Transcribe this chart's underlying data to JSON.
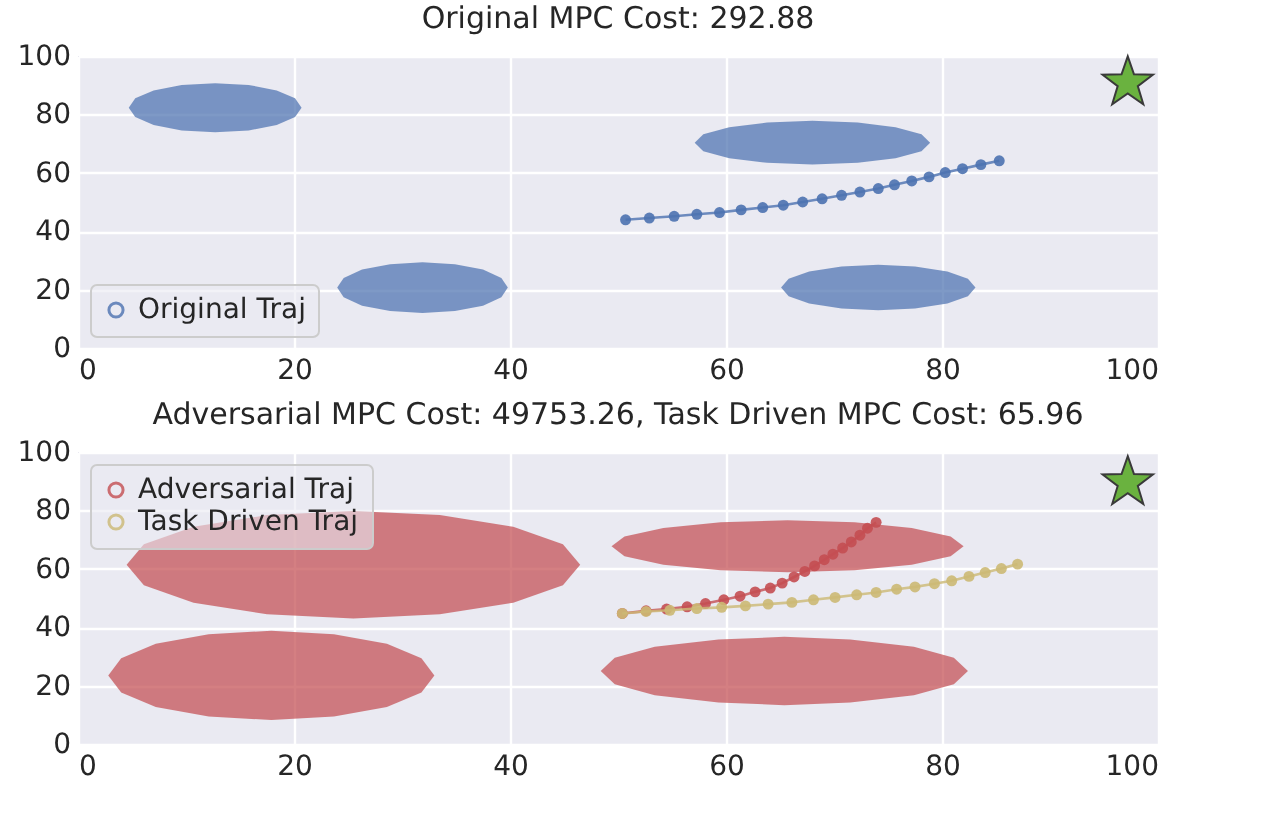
{
  "chart_data": [
    {
      "type": "line",
      "title": "Original MPC Cost: 292.88",
      "xlim": [
        0,
        100
      ],
      "ylim": [
        0,
        100
      ],
      "xticks": [
        0,
        20,
        40,
        60,
        80,
        100
      ],
      "yticks": [
        0,
        20,
        40,
        60,
        80,
        100
      ],
      "grid": true,
      "legend": "bottom left",
      "series": [
        {
          "type": "area",
          "color": "#4c72b0",
          "x": [
            4.7,
            5.3,
            7.0,
            9.6,
            12.7,
            15.8,
            18.4,
            20.1,
            20.7,
            20.1,
            18.4,
            15.8,
            12.7,
            9.6,
            7.0,
            5.3
          ],
          "values": [
            82.3,
            85.5,
            88.2,
            90.1,
            90.7,
            90.1,
            88.2,
            85.5,
            82.3,
            79.1,
            76.4,
            74.5,
            73.9,
            74.5,
            76.4,
            79.1
          ]
        },
        {
          "type": "area",
          "color": "#4c72b0",
          "x": [
            57.1,
            57.9,
            60.3,
            63.8,
            68.0,
            72.2,
            75.7,
            78.1,
            78.9,
            78.1,
            75.7,
            72.2,
            68.0,
            63.8,
            60.3,
            57.9
          ],
          "values": [
            70.3,
            73.2,
            75.6,
            77.2,
            77.8,
            77.2,
            75.6,
            73.2,
            70.3,
            67.4,
            65.0,
            63.4,
            62.8,
            63.4,
            65.0,
            67.4
          ]
        },
        {
          "type": "area",
          "color": "#4c72b0",
          "x": [
            24.0,
            24.6,
            26.3,
            28.9,
            31.9,
            34.9,
            37.5,
            39.2,
            39.8,
            39.2,
            37.5,
            34.9,
            31.9,
            28.9,
            26.3,
            24.6
          ],
          "values": [
            20.7,
            24.0,
            26.9,
            28.7,
            29.4,
            28.7,
            26.9,
            24.0,
            20.7,
            17.4,
            14.5,
            12.7,
            12.0,
            12.7,
            14.5,
            17.4
          ]
        },
        {
          "type": "area",
          "color": "#4c72b0",
          "x": [
            65.1,
            65.8,
            67.7,
            70.7,
            74.1,
            77.5,
            80.5,
            82.4,
            83.1,
            82.4,
            80.5,
            77.5,
            74.1,
            70.7,
            67.7,
            65.8
          ],
          "values": [
            20.7,
            23.7,
            26.2,
            27.9,
            28.5,
            27.9,
            26.2,
            23.7,
            20.7,
            17.7,
            15.2,
            13.5,
            12.9,
            13.5,
            15.2,
            17.7
          ]
        },
        {
          "type": "line",
          "name": "Original Traj",
          "color": "#4c72b0",
          "marker": "circle",
          "line_style": "solid",
          "x": [
            50.7,
            52.9,
            55.2,
            57.3,
            59.4,
            61.4,
            63.4,
            65.3,
            67.1,
            68.9,
            70.7,
            72.4,
            74.1,
            75.6,
            77.2,
            78.8,
            80.3,
            81.9,
            83.6,
            85.3
          ],
          "values": [
            43.9,
            44.5,
            45.1,
            45.8,
            46.4,
            47.3,
            48.1,
            48.9,
            50.0,
            51.1,
            52.3,
            53.4,
            54.6,
            55.9,
            57.2,
            58.6,
            60.1,
            61.4,
            62.8,
            64.1
          ]
        },
        {
          "type": "scatter",
          "color": "#6ab23f",
          "marker": "star",
          "x": [
            97.2
          ],
          "values": [
            90.8
          ]
        }
      ]
    },
    {
      "type": "line",
      "title": "Adversarial MPC Cost: 49753.26, Task Driven MPC Cost: 65.96",
      "xlim": [
        0,
        100
      ],
      "ylim": [
        0,
        100
      ],
      "xticks": [
        0,
        20,
        40,
        60,
        80,
        100
      ],
      "yticks": [
        0,
        20,
        40,
        60,
        80,
        100
      ],
      "grid": true,
      "legend": "top left",
      "series": [
        {
          "type": "area",
          "color": "#c44e52",
          "x": [
            4.5,
            6.1,
            10.7,
            17.5,
            25.5,
            33.5,
            40.3,
            44.9,
            46.5,
            44.9,
            40.3,
            33.5,
            25.5,
            17.5,
            10.7,
            6.1
          ],
          "values": [
            61.4,
            68.4,
            74.4,
            78.4,
            79.8,
            78.4,
            74.4,
            68.4,
            61.4,
            54.4,
            48.4,
            44.4,
            43.0,
            44.4,
            48.4,
            54.4
          ]
        },
        {
          "type": "area",
          "color": "#c44e52",
          "x": [
            48.4,
            49.7,
            53.4,
            59.3,
            65.4,
            71.5,
            77.4,
            81.1,
            82.4,
            81.1,
            77.4,
            71.5,
            65.4,
            59.3,
            53.4,
            49.7
          ],
          "values": [
            25.0,
            29.5,
            33.3,
            35.8,
            36.7,
            35.8,
            33.3,
            29.5,
            25.0,
            20.5,
            16.7,
            14.2,
            13.3,
            14.2,
            16.7,
            20.5
          ]
        },
        {
          "type": "area",
          "color": "#c44e52",
          "x": [
            2.8,
            4.0,
            7.2,
            12.1,
            17.9,
            23.7,
            28.6,
            31.8,
            33.0,
            31.8,
            28.6,
            23.7,
            17.9,
            12.1,
            7.2,
            4.0
          ],
          "values": [
            23.5,
            29.4,
            34.3,
            37.6,
            38.8,
            37.6,
            34.3,
            29.4,
            23.5,
            17.6,
            12.7,
            9.4,
            8.2,
            9.4,
            12.7,
            17.6
          ]
        },
        {
          "type": "area",
          "color": "#c44e52",
          "x": [
            49.4,
            50.6,
            54.2,
            59.5,
            65.7,
            71.9,
            77.2,
            80.8,
            82.0,
            80.8,
            77.2,
            71.9,
            65.7,
            59.5,
            54.2,
            50.6
          ],
          "values": [
            67.7,
            71.1,
            74.0,
            75.9,
            76.6,
            75.9,
            74.0,
            71.1,
            67.7,
            64.3,
            61.4,
            59.5,
            58.8,
            59.5,
            61.4,
            64.3
          ]
        },
        {
          "type": "line",
          "name": "Adversarial Traj",
          "color": "#c44e52",
          "marker": "circle",
          "line_style": "solid",
          "x": [
            50.4,
            52.6,
            54.5,
            56.4,
            58.1,
            59.8,
            61.3,
            62.7,
            64.1,
            65.2,
            66.3,
            67.3,
            68.2,
            69.1,
            69.9,
            70.8,
            71.6,
            72.4,
            73.1,
            73.9
          ],
          "values": [
            44.7,
            45.6,
            46.2,
            47.0,
            48.1,
            49.4,
            50.6,
            52.1,
            53.4,
            55.1,
            57.2,
            59.1,
            61.0,
            63.1,
            65.0,
            67.1,
            69.2,
            71.5,
            73.9,
            75.9
          ]
        },
        {
          "type": "line",
          "name": "Task Driven Traj",
          "color": "#ccb974",
          "marker": "circle",
          "line_style": "solid",
          "x": [
            50.4,
            52.6,
            54.8,
            57.3,
            59.6,
            61.8,
            63.9,
            66.1,
            68.1,
            70.1,
            72.1,
            73.9,
            75.8,
            77.5,
            79.3,
            80.9,
            82.5,
            84.0,
            85.5,
            87.0
          ],
          "values": [
            44.7,
            45.4,
            45.8,
            46.4,
            46.8,
            47.3,
            47.9,
            48.5,
            49.4,
            50.2,
            51.1,
            51.9,
            53.0,
            53.8,
            54.9,
            55.9,
            57.4,
            58.7,
            60.1,
            61.6
          ]
        },
        {
          "type": "scatter",
          "color": "#6ab23f",
          "marker": "star",
          "x": [
            97.2
          ],
          "values": [
            89.5
          ]
        }
      ]
    }
  ]
}
